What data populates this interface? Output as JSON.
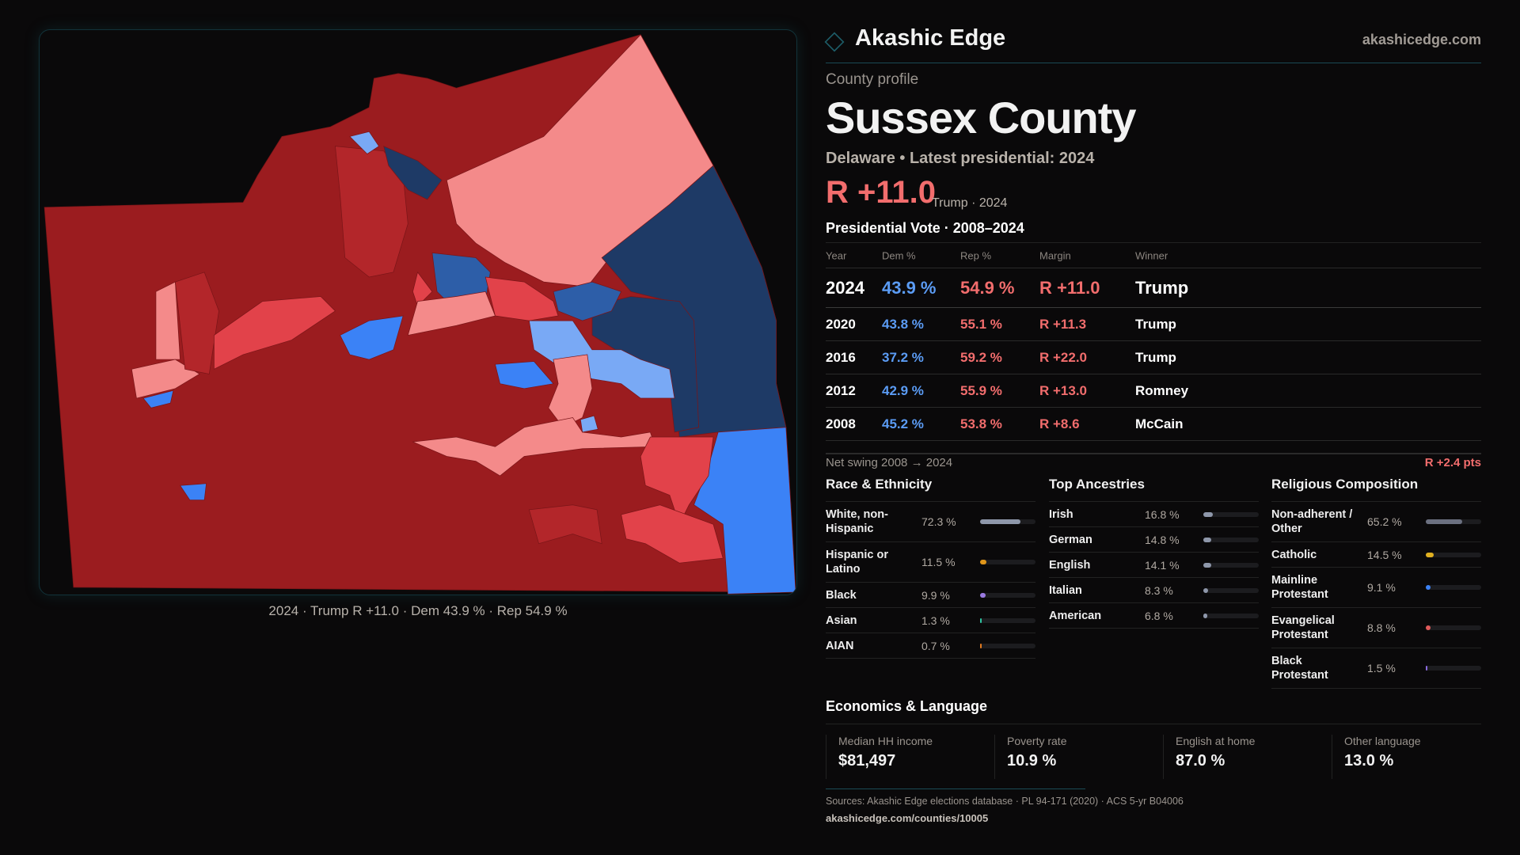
{
  "brand": {
    "name": "Akashic Edge",
    "site": "akashicedge.com"
  },
  "profile": {
    "kicker": "County profile",
    "title": "Sussex County",
    "subtitle": "Delaware • Latest presidential: 2024",
    "margin": "R +11.0",
    "margin_note": "Trump · 2024"
  },
  "map": {
    "caption": "2024 · Trump R +11.0 · Dem 43.9 % · Rep 54.9 %",
    "colors": {
      "safe_r": "#9b1c1f",
      "likely_r": "#b3262a",
      "lean_r": "#e2424a",
      "tilt_r": "#f48a8a",
      "safe_d": "#1e3a66",
      "likely_d": "#2d5ea8",
      "lean_d": "#3b82f6",
      "tilt_d": "#79a9f5"
    }
  },
  "votes": {
    "title": "Presidential Vote · 2008–2024",
    "headers": [
      "Year",
      "Dem %",
      "Rep %",
      "Margin",
      "Winner"
    ],
    "rows": [
      [
        "2024",
        "43.9 %",
        "54.9 %",
        "R +11.0",
        "Trump"
      ],
      [
        "2020",
        "43.8 %",
        "55.1 %",
        "R +11.3",
        "Trump"
      ],
      [
        "2016",
        "37.2 %",
        "59.2 %",
        "R +22.0",
        "Trump"
      ],
      [
        "2012",
        "42.9 %",
        "55.9 %",
        "R +13.0",
        "Romney"
      ],
      [
        "2008",
        "45.2 %",
        "53.8 %",
        "R +8.6",
        "McCain"
      ]
    ],
    "swing_label": "Net swing 2008 → 2024",
    "swing_value": "R +2.4 pts"
  },
  "race": {
    "title": "Race & Ethnicity",
    "items": [
      {
        "label": "White, non-Hispanic",
        "pct": "72.3 %",
        "value": 72.3,
        "color": "#8e97aa"
      },
      {
        "label": "Hispanic or Latino",
        "pct": "11.5 %",
        "value": 11.5,
        "color": "#e0961a"
      },
      {
        "label": "Black",
        "pct": "9.9 %",
        "value": 9.9,
        "color": "#9a7ae0"
      },
      {
        "label": "Asian",
        "pct": "1.3 %",
        "value": 1.3,
        "color": "#2ec4a0"
      },
      {
        "label": "AIAN",
        "pct": "0.7 %",
        "value": 0.7,
        "color": "#e07a20"
      }
    ]
  },
  "ancestry": {
    "title": "Top Ancestries",
    "items": [
      {
        "label": "Irish",
        "pct": "16.8 %",
        "value": 16.8,
        "color": "#8e97aa"
      },
      {
        "label": "German",
        "pct": "14.8 %",
        "value": 14.8,
        "color": "#8e97aa"
      },
      {
        "label": "English",
        "pct": "14.1 %",
        "value": 14.1,
        "color": "#8e97aa"
      },
      {
        "label": "Italian",
        "pct": "8.3 %",
        "value": 8.3,
        "color": "#8e97aa"
      },
      {
        "label": "American",
        "pct": "6.8 %",
        "value": 6.8,
        "color": "#8e97aa"
      }
    ]
  },
  "religion": {
    "title": "Religious Composition",
    "items": [
      {
        "label": "Non-adherent / Other",
        "pct": "65.2 %",
        "value": 65.2,
        "color": "#6b7080"
      },
      {
        "label": "Catholic",
        "pct": "14.5 %",
        "value": 14.5,
        "color": "#e0b020"
      },
      {
        "label": "Mainline Protestant",
        "pct": "9.1 %",
        "value": 9.1,
        "color": "#3b82f6"
      },
      {
        "label": "Evangelical Protestant",
        "pct": "8.8 %",
        "value": 8.8,
        "color": "#e05a5a"
      },
      {
        "label": "Black Protestant",
        "pct": "1.5 %",
        "value": 1.5,
        "color": "#8a6ae0"
      }
    ]
  },
  "economics": {
    "title": "Economics & Language",
    "items": [
      {
        "label": "Median HH income",
        "value": "$81,497"
      },
      {
        "label": "Poverty rate",
        "value": "10.9 %"
      },
      {
        "label": "English at home",
        "value": "87.0 %"
      },
      {
        "label": "Other language",
        "value": "13.0 %"
      }
    ]
  },
  "footer": {
    "sources": "Sources: Akashic Edge elections database · PL 94-171 (2020) · ACS 5-yr B04006",
    "url": "akashicedge.com/counties/10005"
  }
}
